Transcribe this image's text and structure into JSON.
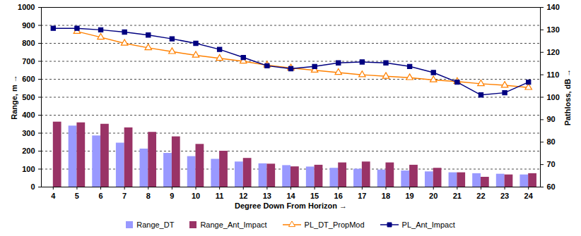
{
  "chart_data": {
    "type": "bar",
    "x_label": "Degree Down From Horizon",
    "y_label": "Range, m",
    "y2_label": "Pathloss, dB",
    "categories": [
      4,
      5,
      6,
      7,
      8,
      9,
      10,
      11,
      12,
      13,
      14,
      15,
      16,
      17,
      18,
      19,
      20,
      21,
      22,
      23,
      24
    ],
    "ylim": [
      0,
      1000
    ],
    "yticks": [
      0,
      100,
      200,
      300,
      400,
      500,
      600,
      700,
      800,
      900,
      1000
    ],
    "y2lim": [
      60,
      140
    ],
    "y2ticks": [
      60,
      70,
      80,
      90,
      100,
      110,
      120,
      130,
      140
    ],
    "grid": true,
    "legend": "bottom",
    "series": [
      {
        "name": "Range_DT",
        "type": "bar",
        "color": "#9999FF",
        "values": [
          null,
          340,
          285,
          245,
          212,
          188,
          170,
          155,
          140,
          130,
          120,
          112,
          105,
          100,
          95,
          90,
          85,
          80,
          75,
          72,
          68
        ]
      },
      {
        "name": "Range_Ant_Impact",
        "type": "bar",
        "color": "#993366",
        "values": [
          362,
          358,
          350,
          330,
          305,
          280,
          238,
          200,
          160,
          128,
          113,
          122,
          135,
          140,
          135,
          122,
          105,
          80,
          55,
          68,
          75
        ]
      },
      {
        "name": "PL_DT_PropMod",
        "type": "line",
        "axis": "y2",
        "color": "#FF8000",
        "marker": "triangle",
        "values": [
          null,
          129.3,
          126.7,
          124,
          122,
          120.3,
          118.7,
          117.3,
          116,
          114.3,
          113,
          112,
          111,
          110,
          109.3,
          108.7,
          107.7,
          107,
          106,
          105.3,
          104.3
        ]
      },
      {
        "name": "PL_Ant_Impact",
        "type": "line",
        "axis": "y2",
        "color": "#000080",
        "marker": "square",
        "values": [
          130.7,
          130.7,
          130,
          129,
          127.7,
          126,
          124,
          121.3,
          117.7,
          114,
          112.7,
          113.7,
          115.3,
          115.7,
          115.3,
          113.7,
          111,
          106.7,
          101,
          102,
          106.7
        ]
      }
    ]
  }
}
